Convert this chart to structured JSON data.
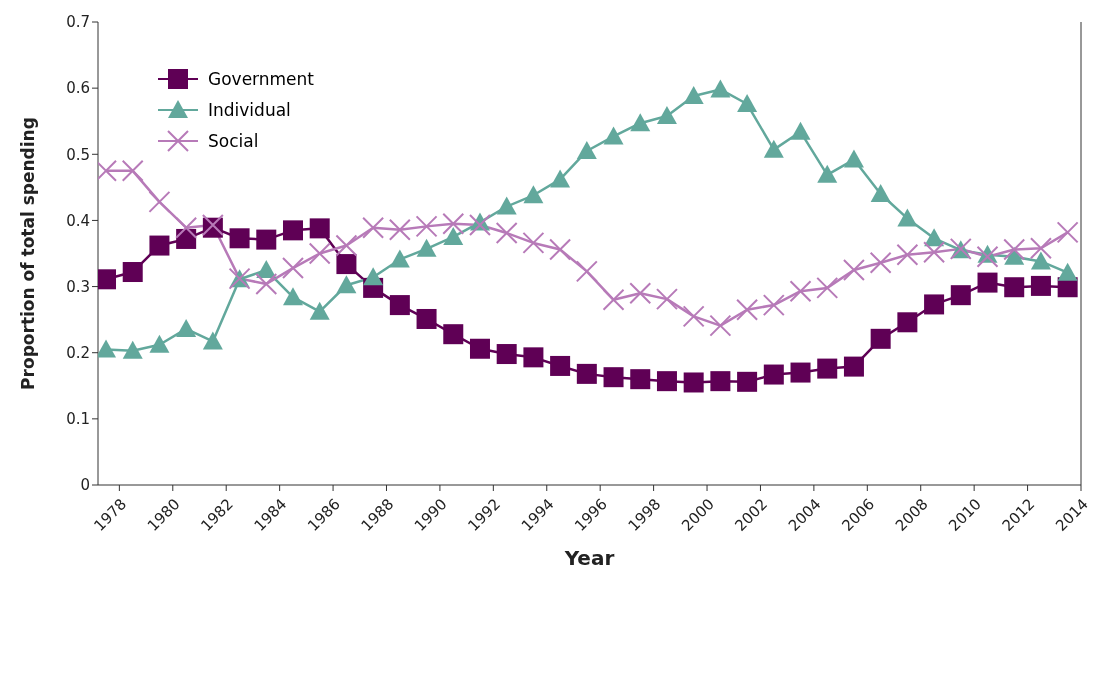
{
  "chart_data": {
    "type": "line",
    "xlabel": "Year",
    "ylabel": "Proportion of total spending",
    "x": [
      1977.5,
      1978.5,
      1979.5,
      1980.5,
      1981.5,
      1982.5,
      1983.5,
      1984.5,
      1985.5,
      1986.5,
      1987.5,
      1988.5,
      1989.5,
      1990.5,
      1991.5,
      1992.5,
      1993.5,
      1994.5,
      1995.5,
      1996.5,
      1997.5,
      1998.5,
      1999.5,
      2000.5,
      2001.5,
      2002.5,
      2003.5,
      2004.5,
      2005.5,
      2006.5,
      2007.5,
      2008.5,
      2009.5,
      2010.5,
      2011.5,
      2012.5,
      2013.5
    ],
    "series": [
      {
        "name": "Government",
        "color": "#5f0055",
        "marker": "square",
        "values": [
          0.311,
          0.322,
          0.362,
          0.372,
          0.389,
          0.373,
          0.371,
          0.385,
          0.388,
          0.334,
          0.298,
          0.272,
          0.251,
          0.228,
          0.206,
          0.198,
          0.193,
          0.18,
          0.168,
          0.163,
          0.16,
          0.157,
          0.155,
          0.157,
          0.156,
          0.167,
          0.17,
          0.176,
          0.179,
          0.221,
          0.246,
          0.273,
          0.287,
          0.306,
          0.299,
          0.301,
          0.299
        ]
      },
      {
        "name": "Individual",
        "color": "#62a89c",
        "marker": "triangle",
        "values": [
          0.205,
          0.203,
          0.212,
          0.236,
          0.217,
          0.311,
          0.325,
          0.284,
          0.262,
          0.302,
          0.314,
          0.341,
          0.357,
          0.375,
          0.397,
          0.421,
          0.438,
          0.462,
          0.505,
          0.527,
          0.547,
          0.558,
          0.588,
          0.598,
          0.576,
          0.507,
          0.534,
          0.469,
          0.492,
          0.44,
          0.403,
          0.373,
          0.355,
          0.348,
          0.345,
          0.338,
          0.321
        ]
      },
      {
        "name": "Social",
        "color": "#b77ab8",
        "marker": "cross",
        "values": [
          0.475,
          0.475,
          0.428,
          0.389,
          0.393,
          0.312,
          0.304,
          0.328,
          0.35,
          0.362,
          0.389,
          0.386,
          0.391,
          0.395,
          0.393,
          0.381,
          0.366,
          0.356,
          0.323,
          0.28,
          0.29,
          0.281,
          0.255,
          0.241,
          0.265,
          0.272,
          0.293,
          0.298,
          0.325,
          0.336,
          0.348,
          0.352,
          0.357,
          0.345,
          0.356,
          0.358,
          0.382
        ]
      }
    ],
    "xlim": [
      1977.2,
      2014
    ],
    "xticks": [
      1978,
      1980,
      1982,
      1984,
      1986,
      1988,
      1990,
      1992,
      1994,
      1996,
      1998,
      2000,
      2002,
      2004,
      2006,
      2008,
      2010,
      2012,
      2014
    ],
    "ylim": [
      0,
      0.7
    ],
    "yticks": [
      0,
      0.1,
      0.2,
      0.3,
      0.4,
      0.5,
      0.6,
      0.7
    ],
    "legend": "top left",
    "line_style": "solid"
  }
}
